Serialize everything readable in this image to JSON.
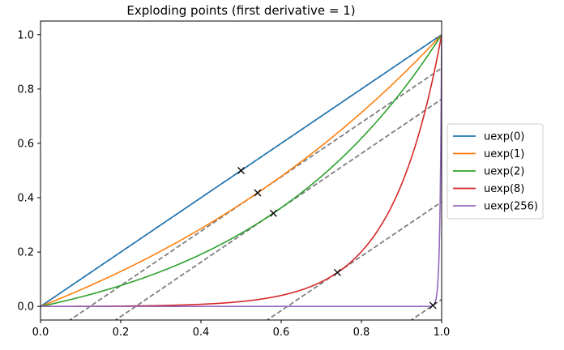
{
  "chart_data": {
    "type": "line",
    "title": "Exploding points (first derivative = 1)",
    "xlabel": "",
    "ylabel": "",
    "xlim": [
      0.0,
      1.0
    ],
    "ylim": [
      -0.05,
      1.05
    ],
    "grid": false,
    "legend_placement": "center-right outside",
    "x_ticks": [
      0.0,
      0.2,
      0.4,
      0.6,
      0.8,
      1.0
    ],
    "x_tick_labels": [
      "0.0",
      "0.2",
      "0.4",
      "0.6",
      "0.8",
      "1.0"
    ],
    "y_ticks": [
      0.0,
      0.2,
      0.4,
      0.6,
      0.8,
      1.0
    ],
    "y_tick_labels": [
      "0.0",
      "0.2",
      "0.4",
      "0.6",
      "0.8",
      "1.0"
    ],
    "series": [
      {
        "name": "uexp(0)",
        "alpha": 0,
        "color": "#1f77b4",
        "exploding_point": [
          0.5,
          0.5
        ]
      },
      {
        "name": "uexp(1)",
        "alpha": 1,
        "color": "#ff7f0e",
        "exploding_point": [
          0.5413,
          0.418
        ]
      },
      {
        "name": "uexp(2)",
        "alpha": 2,
        "color": "#2ca02c",
        "exploding_point": [
          0.5807,
          0.3428
        ]
      },
      {
        "name": "uexp(8)",
        "alpha": 8,
        "color": "#d62728",
        "exploding_point": [
          0.7401,
          0.125
        ]
      },
      {
        "name": "uexp(256)",
        "alpha": 256,
        "color": "#9467bd",
        "exploding_point": [
          0.9783,
          0.0039
        ]
      }
    ],
    "tangent_style": {
      "color": "#7f7f7f",
      "dash": "dashed"
    },
    "marker": "x",
    "marker_color": "#000000"
  }
}
